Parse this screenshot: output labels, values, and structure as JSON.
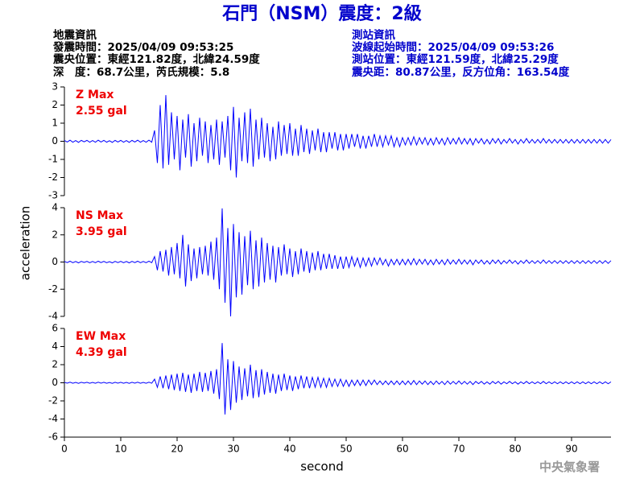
{
  "header": {
    "title": "石門（NSM）震度：2級",
    "left_lines": [
      "地震資訊",
      "發震時間：2025/04/09 09:53:25",
      "震央位置：東經121.82度，北緯24.59度",
      "深　度：68.7公里，芮氏規模：5.8"
    ],
    "right_lines": [
      "測站資訊",
      "波線起始時間：2025/04/09 09:53:26",
      "測站位置：東經121.59度，北緯25.29度",
      "震央距：80.87公里，反方位角：163.54度"
    ],
    "footer": "中央氣象署"
  },
  "chart_data": [
    {
      "type": "line",
      "annotations": [
        "Z Max",
        "2.55 gal"
      ],
      "color": "#0000ff",
      "xlim": [
        0,
        97
      ],
      "ylim": [
        -3,
        3
      ],
      "yticks": [
        -3,
        -2,
        -1,
        0,
        1,
        2,
        3
      ],
      "x": [
        0,
        0.5,
        1,
        1.5,
        2,
        2.5,
        3,
        3.5,
        4,
        4.5,
        5,
        5.5,
        6,
        6.5,
        7,
        7.5,
        8,
        8.5,
        9,
        9.5,
        10,
        10.5,
        11,
        11.5,
        12,
        12.5,
        13,
        13.5,
        14,
        14.5,
        15,
        15.5,
        16,
        16.5,
        17,
        17.5,
        18,
        18.5,
        19,
        19.5,
        20,
        20.5,
        21,
        21.5,
        22,
        22.5,
        23,
        23.5,
        24,
        24.5,
        25,
        25.5,
        26,
        26.5,
        27,
        27.5,
        28,
        28.5,
        29,
        29.5,
        30,
        30.5,
        31,
        31.5,
        32,
        32.5,
        33,
        33.5,
        34,
        34.5,
        35,
        35.5,
        36,
        36.5,
        37,
        37.5,
        38,
        38.5,
        39,
        39.5,
        40,
        40.5,
        41,
        41.5,
        42,
        42.5,
        43,
        43.5,
        44,
        44.5,
        45,
        45.5,
        46,
        46.5,
        47,
        47.5,
        48,
        48.5,
        49,
        49.5,
        50,
        50.5,
        51,
        51.5,
        52,
        52.5,
        53,
        53.5,
        54,
        54.5,
        55,
        55.5,
        56,
        56.5,
        57,
        57.5,
        58,
        58.5,
        59,
        59.5,
        60,
        60.5,
        61,
        61.5,
        62,
        62.5,
        63,
        63.5,
        64,
        64.5,
        65,
        65.5,
        66,
        66.5,
        67,
        67.5,
        68,
        68.5,
        69,
        69.5,
        70,
        70.5,
        71,
        71.5,
        72,
        72.5,
        73,
        73.5,
        74,
        74.5,
        75,
        75.5,
        76,
        76.5,
        77,
        77.5,
        78,
        78.5,
        79,
        79.5,
        80,
        80.5,
        81,
        81.5,
        82,
        82.5,
        83,
        83.5,
        84,
        84.5,
        85,
        85.5,
        86,
        86.5,
        87,
        87.5,
        88,
        88.5,
        89,
        89.5,
        90,
        90.5,
        91,
        91.5,
        92,
        92.5,
        93,
        93.5,
        94,
        94.5,
        95,
        95.5,
        96,
        96.5,
        97
      ],
      "values": [
        0.05,
        -0.04,
        0.06,
        -0.05,
        0.04,
        -0.06,
        0.05,
        -0.03,
        0.05,
        -0.05,
        0.04,
        -0.05,
        0.06,
        -0.04,
        0.05,
        -0.05,
        0.03,
        -0.06,
        0.05,
        -0.04,
        0.05,
        -0.05,
        0.04,
        -0.06,
        0.05,
        -0.04,
        0.06,
        -0.05,
        0.04,
        -0.05,
        0.06,
        -0.05,
        0.6,
        -1.2,
        2.0,
        -1.5,
        2.55,
        -1.3,
        1.6,
        -1.0,
        1.4,
        -1.6,
        1.2,
        -0.9,
        1.5,
        -1.4,
        1.0,
        -1.1,
        1.3,
        -0.8,
        1.1,
        -1.2,
        0.9,
        -1.0,
        1.2,
        -1.3,
        1.1,
        -0.9,
        1.4,
        -1.6,
        1.9,
        -2.0,
        1.3,
        -1.1,
        1.6,
        -1.2,
        1.8,
        -1.4,
        1.2,
        -1.0,
        1.3,
        -0.9,
        1.0,
        -1.1,
        0.8,
        -1.0,
        1.1,
        -0.8,
        0.9,
        -0.7,
        1.0,
        -0.8,
        0.7,
        -0.8,
        0.9,
        -0.6,
        0.7,
        -0.7,
        0.6,
        -0.5,
        0.7,
        -0.6,
        0.5,
        -0.6,
        0.5,
        -0.4,
        0.5,
        -0.5,
        0.4,
        -0.5,
        0.4,
        -0.4,
        0.4,
        -0.3,
        0.4,
        -0.4,
        0.3,
        -0.4,
        0.3,
        -0.3,
        0.4,
        -0.3,
        0.3,
        -0.3,
        0.3,
        -0.2,
        0.3,
        -0.3,
        0.2,
        -0.3,
        0.2,
        -0.2,
        0.2,
        -0.2,
        0.25,
        -0.2,
        0.2,
        -0.15,
        0.2,
        -0.2,
        0.15,
        -0.2,
        0.2,
        -0.15,
        0.15,
        -0.2,
        0.2,
        -0.15,
        0.15,
        -0.15,
        0.2,
        -0.15,
        0.15,
        -0.15,
        0.15,
        -0.2,
        0.15,
        -0.1,
        0.15,
        -0.15,
        0.1,
        -0.15,
        0.15,
        -0.1,
        0.15,
        -0.15,
        0.1,
        -0.1,
        0.15,
        -0.1,
        0.1,
        -0.15,
        0.1,
        -0.1,
        0.15,
        -0.1,
        0.1,
        -0.1,
        0.1,
        -0.1,
        0.15,
        -0.1,
        0.1,
        -0.1,
        0.1,
        -0.1,
        0.1,
        -0.1,
        0.1,
        -0.1,
        0.1,
        -0.1,
        0.1,
        -0.1,
        0.1,
        -0.1,
        0.1,
        -0.1,
        0.1,
        -0.1,
        0.1,
        -0.1,
        0.1,
        -0.1,
        0.1
      ]
    },
    {
      "type": "line",
      "annotations": [
        "NS Max",
        "3.95 gal"
      ],
      "color": "#0000ff",
      "ylabel": "acceleration",
      "xlim": [
        0,
        97
      ],
      "ylim": [
        -4,
        4
      ],
      "yticks": [
        -4,
        -2,
        0,
        2,
        4
      ],
      "x": [
        0,
        0.5,
        1,
        1.5,
        2,
        2.5,
        3,
        3.5,
        4,
        4.5,
        5,
        5.5,
        6,
        6.5,
        7,
        7.5,
        8,
        8.5,
        9,
        9.5,
        10,
        10.5,
        11,
        11.5,
        12,
        12.5,
        13,
        13.5,
        14,
        14.5,
        15,
        15.5,
        16,
        16.5,
        17,
        17.5,
        18,
        18.5,
        19,
        19.5,
        20,
        20.5,
        21,
        21.5,
        22,
        22.5,
        23,
        23.5,
        24,
        24.5,
        25,
        25.5,
        26,
        26.5,
        27,
        27.5,
        28,
        28.5,
        29,
        29.5,
        30,
        30.5,
        31,
        31.5,
        32,
        32.5,
        33,
        33.5,
        34,
        34.5,
        35,
        35.5,
        36,
        36.5,
        37,
        37.5,
        38,
        38.5,
        39,
        39.5,
        40,
        40.5,
        41,
        41.5,
        42,
        42.5,
        43,
        43.5,
        44,
        44.5,
        45,
        45.5,
        46,
        46.5,
        47,
        47.5,
        48,
        48.5,
        49,
        49.5,
        50,
        50.5,
        51,
        51.5,
        52,
        52.5,
        53,
        53.5,
        54,
        54.5,
        55,
        55.5,
        56,
        56.5,
        57,
        57.5,
        58,
        58.5,
        59,
        59.5,
        60,
        60.5,
        61,
        61.5,
        62,
        62.5,
        63,
        63.5,
        64,
        64.5,
        65,
        65.5,
        66,
        66.5,
        67,
        67.5,
        68,
        68.5,
        69,
        69.5,
        70,
        70.5,
        71,
        71.5,
        72,
        72.5,
        73,
        73.5,
        74,
        74.5,
        75,
        75.5,
        76,
        76.5,
        77,
        77.5,
        78,
        78.5,
        79,
        79.5,
        80,
        80.5,
        81,
        81.5,
        82,
        82.5,
        83,
        83.5,
        84,
        84.5,
        85,
        85.5,
        86,
        86.5,
        87,
        87.5,
        88,
        88.5,
        89,
        89.5,
        90,
        90.5,
        91,
        91.5,
        92,
        92.5,
        93,
        93.5,
        94,
        94.5,
        95,
        95.5,
        96,
        96.5,
        97
      ],
      "values": [
        0.05,
        -0.04,
        0.06,
        -0.05,
        0.04,
        -0.06,
        0.05,
        -0.03,
        0.05,
        -0.05,
        0.04,
        -0.05,
        0.06,
        -0.04,
        0.05,
        -0.05,
        0.03,
        -0.06,
        0.05,
        -0.04,
        0.05,
        -0.05,
        0.04,
        -0.06,
        0.05,
        -0.04,
        0.06,
        -0.05,
        0.04,
        -0.05,
        0.06,
        -0.05,
        0.4,
        -0.6,
        0.8,
        -0.7,
        0.9,
        -1.0,
        1.1,
        -0.9,
        1.4,
        -1.2,
        2.0,
        -1.8,
        1.3,
        -1.4,
        1.0,
        -1.2,
        1.1,
        -0.9,
        1.2,
        -1.0,
        1.5,
        -1.3,
        1.8,
        -2.0,
        3.95,
        -3.0,
        2.5,
        -4.0,
        2.8,
        -2.6,
        2.2,
        -2.4,
        1.9,
        -1.7,
        2.3,
        -2.0,
        1.6,
        -1.8,
        1.8,
        -1.5,
        1.4,
        -1.3,
        1.2,
        -1.5,
        1.1,
        -1.0,
        1.3,
        -0.9,
        1.0,
        -1.1,
        0.8,
        -0.9,
        1.0,
        -0.7,
        0.8,
        -0.8,
        0.7,
        -0.6,
        0.8,
        -0.6,
        0.6,
        -0.5,
        0.6,
        -0.5,
        0.5,
        -0.5,
        0.4,
        -0.5,
        0.4,
        -0.4,
        0.4,
        -0.3,
        0.3,
        -0.4,
        0.3,
        -0.3,
        0.3,
        -0.3,
        0.3,
        -0.2,
        0.3,
        -0.2,
        0.2,
        -0.3,
        0.2,
        -0.2,
        0.2,
        -0.2,
        0.2,
        -0.2,
        0.2,
        -0.2,
        0.25,
        -0.2,
        0.2,
        -0.15,
        0.2,
        -0.2,
        0.15,
        -0.2,
        0.2,
        -0.15,
        0.15,
        -0.2,
        0.2,
        -0.15,
        0.15,
        -0.15,
        0.2,
        -0.15,
        0.15,
        -0.15,
        0.15,
        -0.2,
        0.15,
        -0.1,
        0.15,
        -0.15,
        0.1,
        -0.15,
        0.15,
        -0.1,
        0.15,
        -0.15,
        0.1,
        -0.1,
        0.15,
        -0.1,
        0.1,
        -0.15,
        0.1,
        -0.1,
        0.15,
        -0.1,
        0.1,
        -0.1,
        0.1,
        -0.1,
        0.15,
        -0.1,
        0.1,
        -0.1,
        0.1,
        -0.1,
        0.1,
        -0.1,
        0.1,
        -0.1,
        0.1,
        -0.1,
        0.1,
        -0.1,
        0.1,
        -0.1,
        0.1,
        -0.1,
        0.1,
        -0.1,
        0.1,
        -0.1,
        0.1,
        -0.1,
        0.1
      ]
    },
    {
      "type": "line",
      "annotations": [
        "EW Max",
        "4.39 gal"
      ],
      "color": "#0000ff",
      "xlabel": "second",
      "xlim": [
        0,
        97
      ],
      "xticks": [
        0,
        10,
        20,
        30,
        40,
        50,
        60,
        70,
        80,
        90
      ],
      "ylim": [
        -6,
        6
      ],
      "yticks": [
        -6,
        -4,
        -2,
        0,
        2,
        4,
        6
      ],
      "x": [
        0,
        0.5,
        1,
        1.5,
        2,
        2.5,
        3,
        3.5,
        4,
        4.5,
        5,
        5.5,
        6,
        6.5,
        7,
        7.5,
        8,
        8.5,
        9,
        9.5,
        10,
        10.5,
        11,
        11.5,
        12,
        12.5,
        13,
        13.5,
        14,
        14.5,
        15,
        15.5,
        16,
        16.5,
        17,
        17.5,
        18,
        18.5,
        19,
        19.5,
        20,
        20.5,
        21,
        21.5,
        22,
        22.5,
        23,
        23.5,
        24,
        24.5,
        25,
        25.5,
        26,
        26.5,
        27,
        27.5,
        28,
        28.5,
        29,
        29.5,
        30,
        30.5,
        31,
        31.5,
        32,
        32.5,
        33,
        33.5,
        34,
        34.5,
        35,
        35.5,
        36,
        36.5,
        37,
        37.5,
        38,
        38.5,
        39,
        39.5,
        40,
        40.5,
        41,
        41.5,
        42,
        42.5,
        43,
        43.5,
        44,
        44.5,
        45,
        45.5,
        46,
        46.5,
        47,
        47.5,
        48,
        48.5,
        49,
        49.5,
        50,
        50.5,
        51,
        51.5,
        52,
        52.5,
        53,
        53.5,
        54,
        54.5,
        55,
        55.5,
        56,
        56.5,
        57,
        57.5,
        58,
        58.5,
        59,
        59.5,
        60,
        60.5,
        61,
        61.5,
        62,
        62.5,
        63,
        63.5,
        64,
        64.5,
        65,
        65.5,
        66,
        66.5,
        67,
        67.5,
        68,
        68.5,
        69,
        69.5,
        70,
        70.5,
        71,
        71.5,
        72,
        72.5,
        73,
        73.5,
        74,
        74.5,
        75,
        75.5,
        76,
        76.5,
        77,
        77.5,
        78,
        78.5,
        79,
        79.5,
        80,
        80.5,
        81,
        81.5,
        82,
        82.5,
        83,
        83.5,
        84,
        84.5,
        85,
        85.5,
        86,
        86.5,
        87,
        87.5,
        88,
        88.5,
        89,
        89.5,
        90,
        90.5,
        91,
        91.5,
        92,
        92.5,
        93,
        93.5,
        94,
        94.5,
        95,
        95.5,
        96,
        96.5,
        97
      ],
      "values": [
        0.05,
        -0.04,
        0.06,
        -0.05,
        0.04,
        -0.06,
        0.05,
        -0.03,
        0.05,
        -0.05,
        0.04,
        -0.05,
        0.06,
        -0.04,
        0.05,
        -0.05,
        0.03,
        -0.06,
        0.05,
        -0.04,
        0.05,
        -0.05,
        0.04,
        -0.06,
        0.05,
        -0.04,
        0.06,
        -0.05,
        0.04,
        -0.05,
        0.06,
        -0.05,
        0.4,
        -0.5,
        0.7,
        -0.6,
        0.8,
        -0.7,
        0.9,
        -0.8,
        1.0,
        -0.9,
        1.1,
        -1.0,
        0.9,
        -1.1,
        1.0,
        -0.9,
        1.2,
        -1.0,
        1.1,
        -0.9,
        1.3,
        -1.2,
        1.5,
        -1.8,
        4.39,
        -3.5,
        2.6,
        -3.0,
        2.4,
        -2.2,
        1.8,
        -1.9,
        1.6,
        -1.5,
        2.0,
        -1.7,
        1.4,
        -1.6,
        1.5,
        -1.3,
        1.2,
        -1.1,
        1.0,
        -1.2,
        0.9,
        -0.9,
        1.0,
        -0.8,
        0.8,
        -0.9,
        0.7,
        -0.7,
        0.8,
        -0.6,
        0.7,
        -0.6,
        0.6,
        -0.5,
        0.6,
        -0.5,
        0.5,
        -0.5,
        0.5,
        -0.4,
        0.4,
        -0.4,
        0.4,
        -0.4,
        0.3,
        -0.4,
        0.3,
        -0.3,
        0.3,
        -0.3,
        0.3,
        -0.3,
        0.3,
        -0.2,
        0.3,
        -0.2,
        0.2,
        -0.2,
        0.2,
        -0.2,
        0.2,
        -0.2,
        0.2,
        -0.2,
        0.2,
        -0.2,
        0.2,
        -0.2,
        0.25,
        -0.2,
        0.2,
        -0.15,
        0.2,
        -0.2,
        0.15,
        -0.2,
        0.2,
        -0.15,
        0.15,
        -0.2,
        0.2,
        -0.15,
        0.15,
        -0.15,
        0.2,
        -0.15,
        0.15,
        -0.15,
        0.15,
        -0.2,
        0.15,
        -0.1,
        0.15,
        -0.15,
        0.1,
        -0.15,
        0.15,
        -0.1,
        0.15,
        -0.15,
        0.1,
        -0.1,
        0.15,
        -0.1,
        0.1,
        -0.15,
        0.1,
        -0.1,
        0.15,
        -0.1,
        0.1,
        -0.1,
        0.1,
        -0.1,
        0.15,
        -0.1,
        0.1,
        -0.1,
        0.1,
        -0.1,
        0.1,
        -0.1,
        0.1,
        -0.1,
        0.1,
        -0.1,
        0.1,
        -0.1,
        0.1,
        -0.1,
        0.1,
        -0.1,
        0.1,
        -0.1,
        0.1,
        -0.1,
        0.1,
        -0.1,
        0.1
      ]
    }
  ]
}
